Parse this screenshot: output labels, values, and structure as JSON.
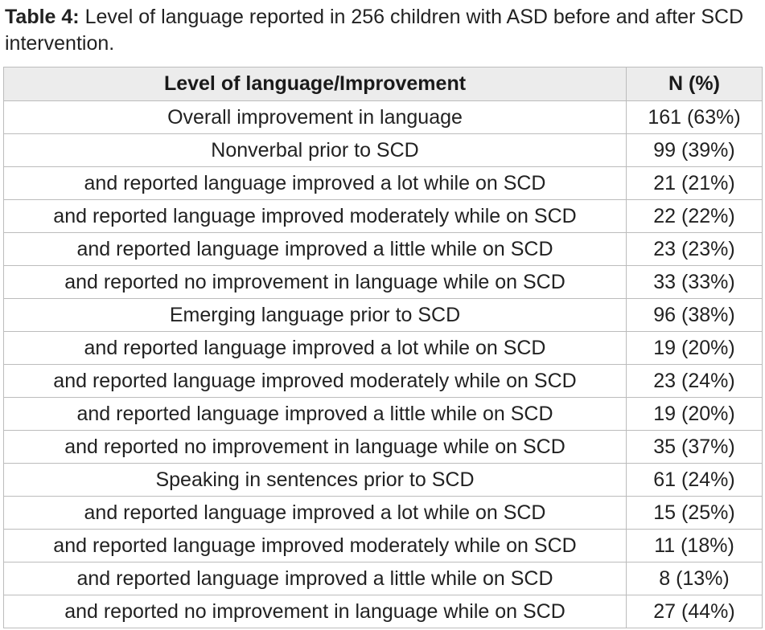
{
  "caption": {
    "label": "Table 4:",
    "text": " Level of language reported in 256 children with ASD before and after SCD intervention."
  },
  "table": {
    "headers": [
      "Level of language/Improvement",
      "N (%)"
    ],
    "rows": [
      [
        "Overall improvement in language",
        "161 (63%)"
      ],
      [
        "Nonverbal prior to SCD",
        "99 (39%)"
      ],
      [
        "and reported language improved a lot while on SCD",
        "21 (21%)"
      ],
      [
        "and reported language improved moderately while on SCD",
        "22 (22%)"
      ],
      [
        "and reported language improved a little while on SCD",
        "23 (23%)"
      ],
      [
        "and reported no improvement in language while on SCD",
        "33 (33%)"
      ],
      [
        "Emerging language prior to SCD",
        "96 (38%)"
      ],
      [
        "and reported language improved a lot while on SCD",
        "19 (20%)"
      ],
      [
        "and reported language improved moderately while on SCD",
        "23 (24%)"
      ],
      [
        "and reported language improved a little while on SCD",
        "19 (20%)"
      ],
      [
        "and reported no improvement in language while on SCD",
        "35 (37%)"
      ],
      [
        "Speaking in sentences prior to SCD",
        "61 (24%)"
      ],
      [
        "and reported language improved a lot while on SCD",
        "15 (25%)"
      ],
      [
        "and reported language improved moderately while on SCD",
        "11 (18%)"
      ],
      [
        "and reported language improved a little while on SCD",
        "8 (13%)"
      ],
      [
        "and reported no improvement in language while on SCD",
        "27 (44%)"
      ]
    ]
  }
}
